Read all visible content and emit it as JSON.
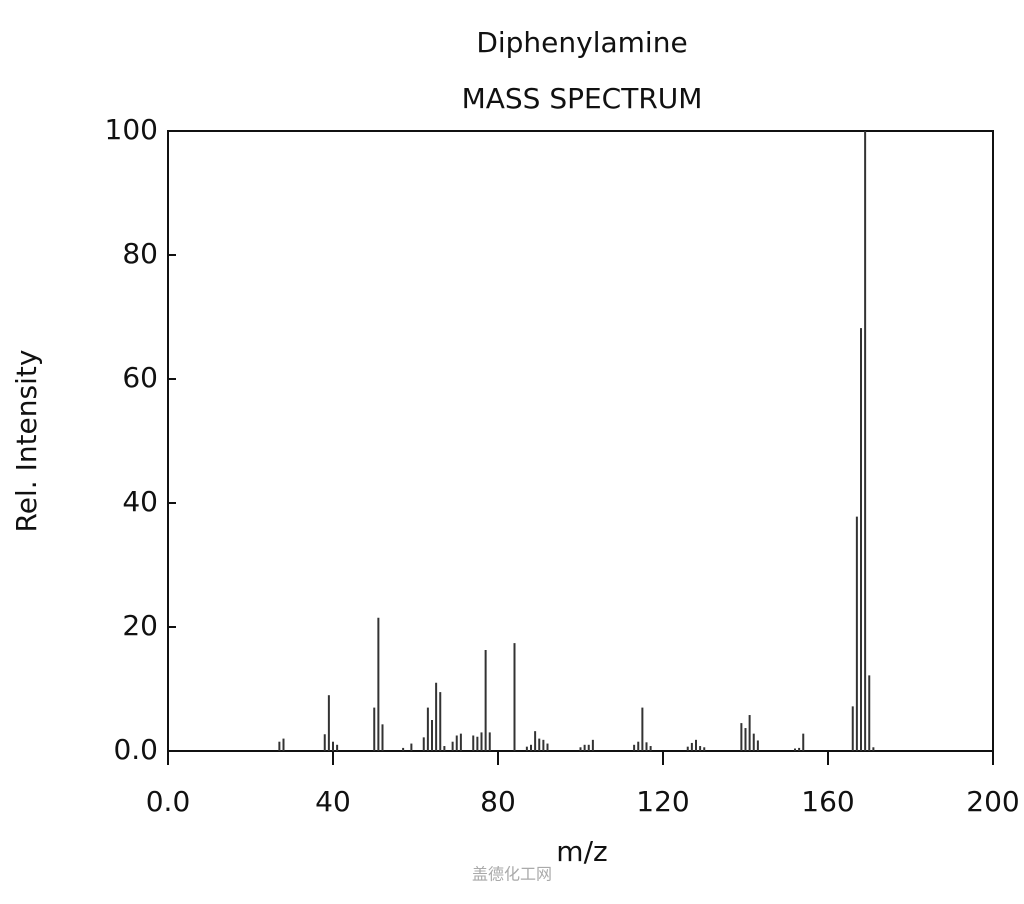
{
  "chart_data": {
    "type": "stem",
    "title": "Diphenylamine",
    "subtitle": "MASS SPECTRUM",
    "x_label": "m/z",
    "y_label": "Rel. Intensity",
    "color": "#333333",
    "x": [
      27,
      28,
      38,
      39,
      40,
      41,
      50,
      51,
      52,
      57,
      59,
      62,
      63,
      64,
      65,
      66,
      67,
      69,
      70,
      71,
      74,
      75,
      76,
      77,
      78,
      84,
      87,
      88,
      89,
      90,
      91,
      92,
      100,
      101,
      102,
      103,
      113,
      114,
      115,
      116,
      117,
      126,
      127,
      128,
      129,
      130,
      139,
      140,
      141,
      142,
      143,
      152,
      153,
      154,
      166,
      167,
      168,
      169,
      170,
      171
    ],
    "values": [
      1.5,
      2,
      2.7,
      9,
      1.5,
      1,
      7,
      21.5,
      4.3,
      0.5,
      1.2,
      2.2,
      7,
      5,
      11,
      9.5,
      0.8,
      1.5,
      2.5,
      2.8,
      2.5,
      2.3,
      3,
      16.3,
      3,
      17.4,
      0.7,
      1,
      3.2,
      2,
      1.8,
      1.2,
      0.6,
      1,
      1,
      1.8,
      1,
      1.5,
      7,
      1.4,
      0.8,
      0.7,
      1.3,
      1.8,
      0.8,
      0.6,
      4.5,
      3.7,
      5.8,
      2.8,
      1.7,
      0.4,
      0.5,
      2.8,
      7.2,
      37.8,
      68.2,
      100,
      12.2,
      0.6
    ],
    "xlim": [
      0,
      200
    ],
    "xticks": [
      {
        "value": 0,
        "label": "0.0"
      },
      40,
      80,
      120,
      160,
      200
    ],
    "ylim": [
      0,
      100
    ],
    "yticks": [
      {
        "value": 0,
        "label": "0.0"
      },
      20,
      40,
      60,
      80,
      100
    ]
  },
  "watermark": "盖德化工网"
}
